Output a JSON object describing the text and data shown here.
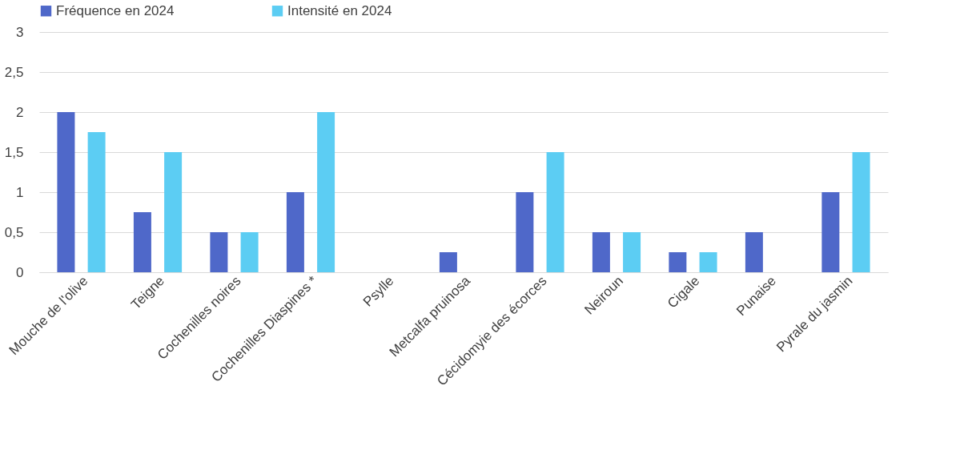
{
  "chart_data": {
    "type": "bar",
    "categories": [
      "Mouche de l'olive",
      "Teigne",
      "Cochenilles noires",
      "Cochenilles Diaspines *",
      "Psylle",
      "Metcalfa pruinosa",
      "Cécidomyie des écorces",
      "Neiroun",
      "Cigale",
      "Punaise",
      "Pyrale du jasmin"
    ],
    "series": [
      {
        "name": "Fréquence en 2024",
        "color": "#4f68c9",
        "values": [
          2,
          0.75,
          0.5,
          1,
          0,
          0.25,
          1,
          0.5,
          0.25,
          0.5,
          1
        ]
      },
      {
        "name": "Intensité en 2024",
        "color": "#5ccdf3",
        "values": [
          1.75,
          1.5,
          0.5,
          2,
          0,
          0,
          1.5,
          0.5,
          0.25,
          0,
          1.5
        ]
      }
    ],
    "ylim": [
      0,
      3
    ],
    "yticks": [
      0,
      {
        "value": 0.5,
        "label": "0,5"
      },
      1,
      {
        "value": 1.5,
        "label": "1,5"
      },
      2,
      {
        "value": 2.5,
        "label": "2,5"
      },
      3
    ],
    "grid": "y",
    "legend": "top"
  }
}
